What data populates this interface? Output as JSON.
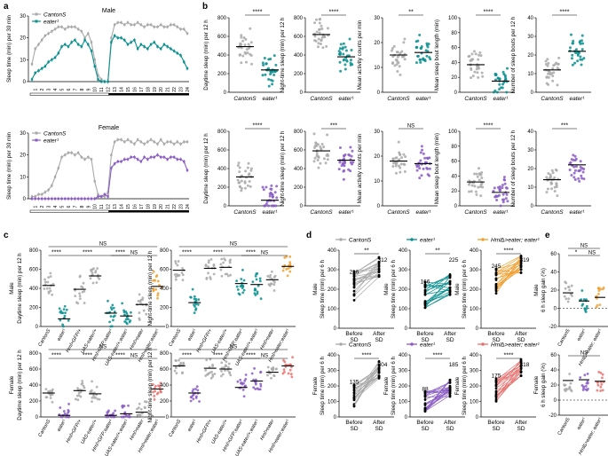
{
  "colors": {
    "grey": "#a9a9a9",
    "teal": "#0b8f8f",
    "purple": "#8a5cc4",
    "orange": "#f0a030",
    "red": "#e8726f",
    "black": "#000000"
  },
  "panel_labels": {
    "a": "a",
    "b": "b",
    "c": "c",
    "d": "d",
    "e": "e"
  },
  "chart_data": [
    {
      "id": "a_male",
      "type": "line",
      "title": "Male",
      "ylabel": "Sleep time (min) per 30 min",
      "ylim": [
        0,
        30
      ],
      "yticks": [
        0,
        10,
        20,
        30
      ],
      "xticks": [
        "1",
        "2",
        "3",
        "4",
        "5",
        "6",
        "7",
        "8",
        "9",
        "10",
        "11",
        "12",
        "13",
        "14",
        "15",
        "16",
        "17",
        "18",
        "19",
        "20",
        "21",
        "22",
        "23",
        "24"
      ],
      "series": [
        {
          "name": "CantonS",
          "color": "grey",
          "values": [
            8,
            15,
            17,
            19,
            21,
            22,
            23,
            24,
            25,
            25,
            24,
            25,
            25,
            25,
            24,
            23,
            20,
            22,
            18,
            10,
            3,
            1,
            0,
            0,
            20,
            26,
            27,
            27,
            26,
            27,
            26,
            26,
            27,
            26,
            25,
            26,
            26,
            25,
            25,
            26,
            25,
            25,
            26,
            26,
            25,
            24,
            24,
            22
          ]
        },
        {
          "name": "eater¹",
          "color": "teal",
          "values": [
            1,
            4,
            5,
            6,
            7,
            9,
            10,
            11,
            13,
            16,
            17,
            16,
            18,
            19,
            17,
            16,
            19,
            17,
            14,
            7,
            1,
            0,
            0,
            0,
            18,
            21,
            20,
            20,
            19,
            17,
            18,
            19,
            15,
            17,
            16,
            15,
            17,
            18,
            16,
            15,
            17,
            16,
            15,
            14,
            13,
            12,
            9,
            6
          ]
        }
      ]
    },
    {
      "id": "a_female",
      "type": "line",
      "title": "Female",
      "ylabel": "Sleep time (min) per 30 min",
      "ylim": [
        0,
        30
      ],
      "yticks": [
        0,
        10,
        20,
        30
      ],
      "xticks": [
        "1",
        "2",
        "3",
        "4",
        "5",
        "6",
        "7",
        "8",
        "9",
        "10",
        "11",
        "12",
        "13",
        "14",
        "15",
        "16",
        "17",
        "18",
        "19",
        "20",
        "21",
        "22",
        "23",
        "24"
      ],
      "series": [
        {
          "name": "CantonS",
          "color": "grey",
          "values": [
            1,
            1,
            2,
            2,
            3,
            4,
            6,
            10,
            14,
            19,
            20,
            21,
            21,
            20,
            21,
            19,
            18,
            19,
            18,
            8,
            2,
            1,
            1,
            3,
            20,
            26,
            27,
            27,
            26,
            27,
            26,
            25,
            27,
            26,
            25,
            26,
            27,
            26,
            25,
            27,
            25,
            26,
            26,
            25,
            26,
            25,
            26,
            26
          ]
        },
        {
          "name": "eater¹",
          "color": "purple",
          "values": [
            0,
            0,
            0,
            0,
            0,
            0,
            0,
            0,
            0,
            0,
            0,
            0,
            0,
            0,
            0,
            0,
            0,
            0,
            0,
            0,
            1,
            1,
            2,
            1,
            14,
            16,
            17,
            17,
            18,
            18,
            19,
            19,
            18,
            17,
            19,
            18,
            19,
            19,
            20,
            19,
            19,
            18,
            19,
            19,
            18,
            18,
            17,
            13
          ]
        }
      ]
    },
    {
      "id": "b_m_day",
      "type": "scatter",
      "xlabel_cats": [
        "CantonS",
        "eater¹"
      ],
      "ylabel": "Daytime sleep (min) per 12 h",
      "ylim": [
        0,
        800
      ],
      "yticks": [
        0,
        200,
        400,
        600,
        800
      ],
      "medians": [
        490,
        240
      ],
      "sig": "****",
      "colors": [
        "grey",
        "teal"
      ]
    },
    {
      "id": "b_m_night",
      "type": "scatter",
      "xlabel_cats": [
        "CantonS",
        "eater¹"
      ],
      "ylabel": "Night-time sleep (min) per 12 h",
      "ylim": [
        0,
        800
      ],
      "yticks": [
        0,
        200,
        400,
        600,
        800
      ],
      "medians": [
        620,
        380
      ],
      "sig": "****",
      "colors": [
        "grey",
        "teal"
      ]
    },
    {
      "id": "b_m_act",
      "type": "scatter",
      "xlabel_cats": [
        "CantonS",
        "eater¹"
      ],
      "ylabel": "Mean activity counts per min",
      "ylim": [
        0,
        30
      ],
      "yticks": [
        0,
        10,
        20,
        30
      ],
      "medians": [
        15,
        16
      ],
      "sig": "**",
      "colors": [
        "grey",
        "teal"
      ]
    },
    {
      "id": "b_m_bout",
      "type": "scatter",
      "xlabel_cats": [
        "CantonS",
        "eater¹"
      ],
      "ylabel": "Mean sleep bout length (min)",
      "ylim": [
        0,
        100
      ],
      "yticks": [
        0,
        20,
        40,
        60,
        80,
        100
      ],
      "medians": [
        37,
        15
      ],
      "sig": "****",
      "colors": [
        "grey",
        "teal"
      ]
    },
    {
      "id": "b_m_num",
      "type": "scatter",
      "xlabel_cats": [
        "CantonS",
        "eater¹"
      ],
      "ylabel": "Number of sleep bouts per 12 h",
      "ylim": [
        0,
        40
      ],
      "yticks": [
        0,
        10,
        20,
        30,
        40
      ],
      "medians": [
        12,
        22
      ],
      "sig": "****",
      "colors": [
        "grey",
        "teal"
      ]
    },
    {
      "id": "b_f_day",
      "type": "scatter",
      "xlabel_cats": [
        "CantonS",
        "eater¹"
      ],
      "ylabel": "Daytime sleep (min) per 12 h",
      "ylim": [
        0,
        800
      ],
      "yticks": [
        0,
        200,
        400,
        600,
        800
      ],
      "medians": [
        310,
        60
      ],
      "sig": "****",
      "colors": [
        "grey",
        "purple"
      ]
    },
    {
      "id": "b_f_night",
      "type": "scatter",
      "xlabel_cats": [
        "CantonS",
        "eater¹"
      ],
      "ylabel": "Night-time sleep (min) per 12 h",
      "ylim": [
        0,
        800
      ],
      "yticks": [
        0,
        200,
        400,
        600,
        800
      ],
      "medians": [
        590,
        490
      ],
      "sig": "***",
      "colors": [
        "grey",
        "purple"
      ]
    },
    {
      "id": "b_f_act",
      "type": "scatter",
      "xlabel_cats": [
        "CantonS",
        "eater¹"
      ],
      "ylabel": "Mean activity counts per min",
      "ylim": [
        0,
        30
      ],
      "yticks": [
        0,
        10,
        20,
        30
      ],
      "medians": [
        18,
        17
      ],
      "sig": "NS",
      "colors": [
        "grey",
        "purple"
      ]
    },
    {
      "id": "b_f_bout",
      "type": "scatter",
      "xlabel_cats": [
        "CantonS",
        "eater¹"
      ],
      "ylabel": "Mean sleep bout length (min)",
      "ylim": [
        0,
        100
      ],
      "yticks": [
        0,
        20,
        40,
        60,
        80,
        100
      ],
      "medians": [
        32,
        18
      ],
      "sig": "****",
      "colors": [
        "grey",
        "purple"
      ]
    },
    {
      "id": "b_f_num",
      "type": "scatter",
      "xlabel_cats": [
        "CantonS",
        "eater¹"
      ],
      "ylabel": "Number of sleep bouts per 12 h",
      "ylim": [
        0,
        40
      ],
      "yticks": [
        0,
        10,
        20,
        30,
        40
      ],
      "medians": [
        14,
        22
      ],
      "sig": "***",
      "colors": [
        "grey",
        "purple"
      ]
    },
    {
      "id": "c_m_day",
      "type": "scatter",
      "sex": "Male",
      "ylabel": "Daytime sleep (min) per 12 h",
      "ylim": [
        0,
        800
      ],
      "yticks": [
        0,
        200,
        400,
        600,
        800
      ],
      "categories": [
        "CantonS",
        "eater¹",
        "Hml>GFP/+",
        "UAS-eater/+",
        "Hml>GFP;eater¹",
        "UAS-eater/+;eater¹",
        "Hml>eater",
        "Hml>eater;eater¹"
      ],
      "medians": [
        430,
        80,
        390,
        530,
        140,
        110,
        230,
        420
      ],
      "colors": [
        "grey",
        "teal",
        "grey",
        "grey",
        "teal",
        "teal",
        "grey",
        "orange"
      ],
      "sig": [
        "****",
        "****",
        "****",
        "NS"
      ]
    },
    {
      "id": "c_m_night",
      "type": "scatter",
      "sex": "",
      "ylabel": "Night-time sleep (min) per 12 h",
      "ylim": [
        0,
        800
      ],
      "yticks": [
        0,
        200,
        400,
        600,
        800
      ],
      "categories": [
        "CantonS",
        "eater¹",
        "Hml>GFP/+",
        "UAS-eater/+",
        "Hml>GFP;eater¹",
        "UAS-eater/+;eater¹",
        "Hml>eater",
        "Hml>eater;eater¹"
      ],
      "medians": [
        590,
        250,
        610,
        620,
        450,
        440,
        490,
        630
      ],
      "colors": [
        "grey",
        "teal",
        "grey",
        "grey",
        "teal",
        "teal",
        "grey",
        "orange"
      ],
      "sig": [
        "****",
        "****",
        "****",
        "NS"
      ]
    },
    {
      "id": "c_f_day",
      "type": "scatter",
      "sex": "Female",
      "ylabel": "Daytime sleep (min) per 12 h",
      "ylim": [
        0,
        800
      ],
      "yticks": [
        0,
        200,
        400,
        600,
        800
      ],
      "categories": [
        "CantonS",
        "eater¹",
        "Hml>GFP/+",
        "UAS-eater/+",
        "Hml>GFP;eater¹",
        "UAS-eater/+;eater¹",
        "Hml>eater",
        "Hml>eater;eater¹"
      ],
      "medians": [
        300,
        20,
        330,
        290,
        20,
        40,
        60,
        350
      ],
      "colors": [
        "grey",
        "purple",
        "grey",
        "grey",
        "purple",
        "purple",
        "grey",
        "red"
      ],
      "sig": [
        "****",
        "****",
        "****",
        "NS"
      ]
    },
    {
      "id": "c_f_night",
      "type": "scatter",
      "sex": "",
      "ylabel": "Night-time sleep (min) per 12 h",
      "ylim": [
        0,
        800
      ],
      "yticks": [
        0,
        200,
        400,
        600,
        800
      ],
      "categories": [
        "CantonS",
        "eater¹",
        "Hml>GFP/+",
        "UAS-eater/+",
        "Hml>GFP;eater¹",
        "UAS-eater/+;eater¹",
        "Hml>eater",
        "Hml>eater;eater¹"
      ],
      "medians": [
        640,
        300,
        610,
        600,
        370,
        450,
        560,
        640
      ],
      "colors": [
        "grey",
        "purple",
        "grey",
        "grey",
        "purple",
        "purple",
        "grey",
        "red"
      ],
      "sig": [
        "****",
        "****",
        "****",
        "NS"
      ]
    },
    {
      "id": "d_m_cs",
      "type": "line",
      "title": "CantonS",
      "ylabel": "Sleep time (min) per 6 h",
      "ylim": [
        0,
        400
      ],
      "yticks": [
        0,
        100,
        200,
        300,
        400
      ],
      "categories": [
        "Before SD",
        "After SD"
      ],
      "means": [
        216,
        312
      ],
      "labels": [
        "216",
        "312"
      ],
      "sig": "**",
      "color": "grey"
    },
    {
      "id": "d_m_eat",
      "type": "line",
      "title": "eater¹",
      "ylabel": "Sleep time (min) per 6 h",
      "ylim": [
        0,
        400
      ],
      "yticks": [
        0,
        100,
        200,
        300,
        400
      ],
      "categories": [
        "Before SD",
        "After SD"
      ],
      "means": [
        166,
        225
      ],
      "labels": [
        "166",
        "225"
      ],
      "sig": "**",
      "color": "teal"
    },
    {
      "id": "d_m_hml",
      "type": "line",
      "title": "Hml∆>eater; eater¹",
      "ylabel": "Sleep time (min) per 6 h",
      "ylim": [
        0,
        400
      ],
      "yticks": [
        0,
        100,
        200,
        300,
        400
      ],
      "categories": [
        "Before SD",
        "After SD"
      ],
      "means": [
        245,
        319
      ],
      "labels": [
        "245",
        "319"
      ],
      "sig": "****",
      "color": "orange"
    },
    {
      "id": "d_f_cs",
      "type": "line",
      "title": "CantonS",
      "ylabel": "Sleep time (min) per 6 h",
      "ylim": [
        0,
        400
      ],
      "yticks": [
        0,
        100,
        200,
        300,
        400
      ],
      "categories": [
        "Before SD",
        "After SD"
      ],
      "means": [
        135,
        304
      ],
      "labels": [
        "135",
        "304"
      ],
      "sig": "****",
      "color": "grey"
    },
    {
      "id": "d_f_eat",
      "type": "line",
      "title": "eater¹",
      "ylabel": "Sleep time (min) per 6 h",
      "ylim": [
        0,
        400
      ],
      "yticks": [
        0,
        100,
        200,
        300,
        400
      ],
      "categories": [
        "Before SD",
        "After SD"
      ],
      "means": [
        88,
        185
      ],
      "labels": [
        "88",
        "185"
      ],
      "sig": "****",
      "color": "purple"
    },
    {
      "id": "d_f_hml",
      "type": "line",
      "title": "Hml∆>eater; eater¹",
      "ylabel": "Sleep time (min) per 6 h",
      "ylim": [
        0,
        400
      ],
      "yticks": [
        0,
        100,
        200,
        300,
        400
      ],
      "categories": [
        "Before SD",
        "After SD"
      ],
      "means": [
        175,
        318
      ],
      "labels": [
        "175",
        "318"
      ],
      "sig": "****",
      "color": "red"
    },
    {
      "id": "e_m",
      "type": "scatter",
      "ylabel": "6 h sleep gain (%)",
      "ylim": [
        -20,
        60
      ],
      "yticks": [
        -20,
        0,
        20,
        40,
        60
      ],
      "categories": [
        "CantonS",
        "eater¹",
        "Hml∆>eater; eater¹"
      ],
      "medians": [
        17,
        8,
        12
      ],
      "colors": [
        "grey",
        "teal",
        "orange"
      ],
      "sig": [
        "NS",
        "*",
        "NS"
      ]
    },
    {
      "id": "e_f",
      "type": "scatter",
      "ylabel": "6 h sleep gain (%)",
      "ylim": [
        -20,
        60
      ],
      "yticks": [
        -20,
        0,
        20,
        40,
        60
      ],
      "categories": [
        "CantonS",
        "eater¹",
        "Hml∆>eater; eater¹"
      ],
      "medians": [
        26,
        27,
        25
      ],
      "colors": [
        "grey",
        "purple",
        "red"
      ],
      "sig": [
        "NS"
      ]
    }
  ],
  "text": {
    "male": "Male",
    "female": "Female",
    "cantons": "CantonS",
    "eater": "eater¹",
    "before": "Before",
    "after": "After",
    "sd": "SD"
  }
}
